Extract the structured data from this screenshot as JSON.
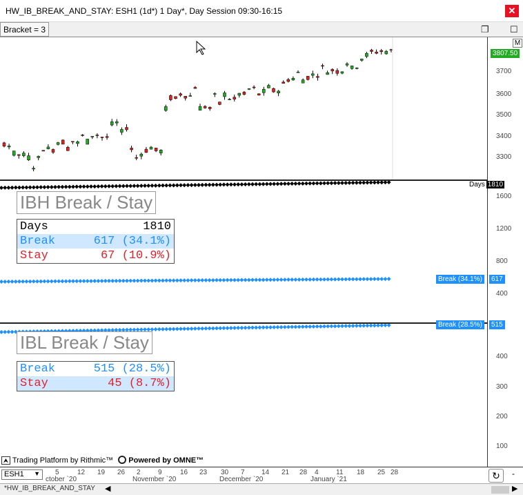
{
  "window": {
    "title": "HW_IB_BREAK_AND_STAY: ESH1 (1d*) 1 Day*, Day Session 09:30-16:15",
    "close_label": "✕"
  },
  "toolbar": {
    "bracket_label": "Bracket = 3",
    "restore_label": "❐",
    "maximize_label": "☐",
    "m_label": "M"
  },
  "price_panel": {
    "y_ticks": [
      "3700",
      "3600",
      "3500",
      "3400",
      "3300"
    ],
    "last_price": "3807.50",
    "accent_up": "#22aa22",
    "accent_down": "#dd2222"
  },
  "ibh_panel": {
    "title": "IBH Break / Stay",
    "days_label": "Days",
    "days_value": "1810",
    "break_label": "Break",
    "break_value": "617 (34.1%)",
    "stay_label": "Stay",
    "stay_value": "67 (10.9%)",
    "y_ticks": [
      "1600",
      "1200",
      "800",
      "400"
    ],
    "flag_label": "Break (34.1%)",
    "flag_value": "617",
    "top_flag_label": "Days",
    "top_flag_value": "1810"
  },
  "ibl_panel": {
    "title": "IBL Break / Stay",
    "break_label": "Break",
    "break_value": "515 (28.5%)",
    "stay_label": "Stay",
    "stay_value": "45 (8.7%)",
    "y_ticks": [
      "400",
      "300",
      "200",
      "100"
    ],
    "flag_label": "Break (28.5%)",
    "flag_value": "515"
  },
  "footer": {
    "rithmic_label": "Trading Platform by Rithmic™",
    "omne_label": "Powered by OMNE™"
  },
  "time_axis": {
    "days": [
      "5",
      "12",
      "19",
      "26",
      "2",
      "9",
      "16",
      "23",
      "30",
      "7",
      "14",
      "21",
      "28",
      "4",
      "11",
      "18",
      "25",
      "28"
    ],
    "months": [
      "ctober `20",
      "November `20",
      "December `20",
      "January `21"
    ]
  },
  "status": {
    "symbol": "ESH1",
    "tab_label": "*HW_IB_BREAK_AND_STAY"
  }
}
